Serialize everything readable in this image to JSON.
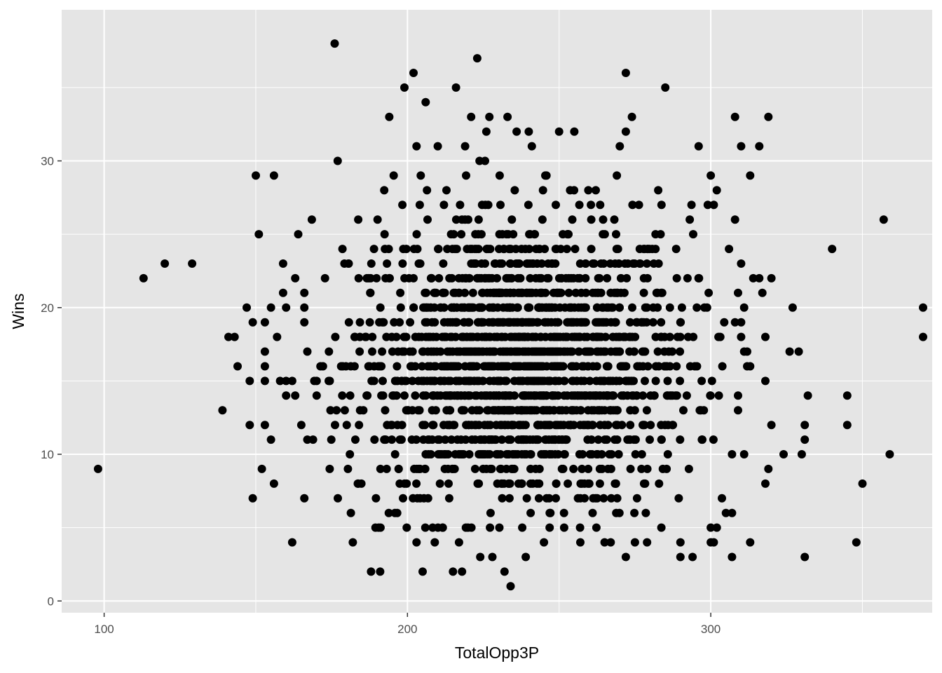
{
  "chart_data": {
    "type": "scatter",
    "title": "",
    "xlabel": "TotalOpp3P",
    "ylabel": "Wins",
    "xlim": [
      86,
      373
    ],
    "ylim": [
      -0.8,
      40.3
    ],
    "x_ticks": [
      100,
      200,
      300
    ],
    "x_tick_labels": [
      "100",
      "200",
      "300"
    ],
    "y_ticks": [
      0,
      10,
      20,
      30
    ],
    "y_tick_labels": [
      "0",
      "10",
      "20",
      "30"
    ],
    "grid": true,
    "panel_background": "#e5e5e5",
    "grid_color": "#ffffff",
    "point_color": "#000000",
    "outlier_points": [
      [
        98,
        9
      ],
      [
        113,
        22
      ],
      [
        120,
        23
      ],
      [
        129,
        23
      ],
      [
        139,
        13
      ],
      [
        141,
        18
      ],
      [
        143,
        18
      ],
      [
        144,
        16
      ],
      [
        147,
        20
      ],
      [
        148,
        12
      ],
      [
        148,
        15
      ],
      [
        149,
        7
      ],
      [
        149,
        19
      ],
      [
        150,
        29
      ],
      [
        151,
        25
      ],
      [
        152,
        9
      ],
      [
        153,
        17
      ],
      [
        153,
        19
      ],
      [
        153,
        12
      ],
      [
        153,
        15
      ],
      [
        153,
        16
      ],
      [
        155,
        11
      ],
      [
        155,
        20
      ],
      [
        156,
        29
      ],
      [
        156,
        8
      ],
      [
        157,
        18
      ],
      [
        158,
        15
      ],
      [
        159,
        21
      ],
      [
        159,
        23
      ],
      [
        160,
        15
      ],
      [
        160,
        20
      ],
      [
        160,
        14
      ],
      [
        162,
        4
      ],
      [
        162,
        15
      ],
      [
        163,
        22
      ],
      [
        163,
        14
      ],
      [
        164,
        25
      ],
      [
        165,
        12
      ],
      [
        166,
        7
      ],
      [
        166,
        19
      ],
      [
        166,
        21
      ],
      [
        166,
        20
      ],
      [
        167,
        11
      ],
      [
        167,
        17
      ],
      [
        176,
        38
      ],
      [
        177,
        30
      ],
      [
        202,
        36
      ],
      [
        199,
        35
      ],
      [
        206,
        34
      ],
      [
        216,
        35
      ],
      [
        223,
        37
      ],
      [
        272,
        36
      ],
      [
        285,
        35
      ],
      [
        194,
        33
      ],
      [
        221,
        33
      ],
      [
        227,
        33
      ],
      [
        233,
        33
      ],
      [
        274,
        33
      ],
      [
        308,
        33
      ],
      [
        319,
        33
      ],
      [
        226,
        32
      ],
      [
        236,
        32
      ],
      [
        240,
        32
      ],
      [
        250,
        32
      ],
      [
        255,
        32
      ],
      [
        272,
        32
      ],
      [
        203,
        31
      ],
      [
        210,
        31
      ],
      [
        219,
        31
      ],
      [
        241,
        31
      ],
      [
        270,
        31
      ],
      [
        296,
        31
      ],
      [
        310,
        31
      ],
      [
        316,
        31
      ],
      [
        232,
        2
      ],
      [
        215,
        2
      ],
      [
        218,
        2
      ],
      [
        188,
        2
      ],
      [
        191,
        2
      ],
      [
        205,
        2
      ],
      [
        224,
        3
      ],
      [
        228,
        3
      ],
      [
        239,
        3
      ],
      [
        272,
        3
      ],
      [
        290,
        3
      ],
      [
        294,
        3
      ],
      [
        307,
        3
      ],
      [
        331,
        3
      ],
      [
        234,
        1
      ],
      [
        182,
        4
      ],
      [
        203,
        4
      ],
      [
        209,
        4
      ],
      [
        217,
        4
      ],
      [
        245,
        4
      ],
      [
        257,
        4
      ],
      [
        265,
        4
      ],
      [
        267,
        4
      ],
      [
        275,
        4
      ],
      [
        279,
        4
      ],
      [
        290,
        4
      ],
      [
        300,
        4
      ],
      [
        313,
        4
      ],
      [
        348,
        4
      ],
      [
        340,
        24
      ],
      [
        357,
        26
      ],
      [
        370,
        20
      ],
      [
        370,
        18
      ],
      [
        359,
        10
      ],
      [
        350,
        8
      ],
      [
        345,
        14
      ],
      [
        345,
        12
      ],
      [
        332,
        14
      ],
      [
        331,
        12
      ],
      [
        331,
        11
      ],
      [
        330,
        10
      ],
      [
        327,
        20
      ],
      [
        326,
        17
      ],
      [
        329,
        17
      ],
      [
        324,
        10
      ],
      [
        320,
        22
      ],
      [
        318,
        18
      ],
      [
        320,
        12
      ],
      [
        319,
        9
      ],
      [
        318,
        8
      ],
      [
        318,
        15
      ],
      [
        313,
        29
      ],
      [
        307,
        10
      ],
      [
        310,
        23
      ],
      [
        308,
        19
      ],
      [
        310,
        19
      ],
      [
        309,
        21
      ],
      [
        309,
        14
      ],
      [
        309,
        13
      ],
      [
        311,
        10
      ],
      [
        314,
        22
      ],
      [
        316,
        22
      ],
      [
        317,
        21
      ],
      [
        311,
        17
      ],
      [
        312,
        17
      ],
      [
        313,
        16
      ],
      [
        312,
        16
      ],
      [
        310,
        18
      ],
      [
        311,
        20
      ],
      [
        308,
        26
      ],
      [
        306,
        24
      ],
      [
        302,
        28
      ],
      [
        300,
        29
      ],
      [
        299,
        27
      ],
      [
        301,
        27
      ],
      [
        307,
        6
      ],
      [
        305,
        6
      ],
      [
        302,
        5
      ],
      [
        300,
        5
      ],
      [
        301,
        4
      ]
    ],
    "dense_cluster": {
      "x_range": [
        168,
        306
      ],
      "wins_range": [
        5,
        30
      ],
      "center_x": 237,
      "center_wins": 16,
      "description_points_count": 1800
    }
  }
}
